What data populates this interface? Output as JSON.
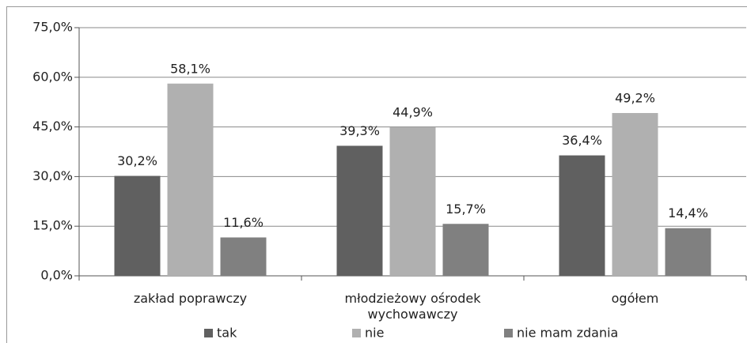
{
  "chart_data": {
    "type": "bar",
    "categories": [
      "zakład poprawczy",
      "młodzieżowy ośrodek wychowawczy",
      "ogółem"
    ],
    "series": [
      {
        "name": "tak",
        "color": "#606060",
        "values": [
          30.2,
          39.3,
          36.4
        ],
        "value_labels": [
          "30,2%",
          "39,3%",
          "36,4%"
        ]
      },
      {
        "name": "nie",
        "color": "#b0b0b0",
        "values": [
          58.1,
          44.9,
          49.2
        ],
        "value_labels": [
          "58,1%",
          "44,9%",
          "49,2%"
        ]
      },
      {
        "name": "nie mam zdania",
        "color": "#808080",
        "values": [
          11.6,
          15.7,
          14.4
        ],
        "value_labels": [
          "11,6%",
          "15,7%",
          "14,4%"
        ]
      }
    ],
    "ylim": [
      0,
      75
    ],
    "yticks": [
      {
        "value": 0,
        "label": "0,0%"
      },
      {
        "value": 15,
        "label": "15,0%"
      },
      {
        "value": 30,
        "label": "30,0%"
      },
      {
        "value": 45,
        "label": "45,0%"
      },
      {
        "value": 60,
        "label": "60,0%"
      },
      {
        "value": 75,
        "label": "75,0%"
      }
    ],
    "grid": true,
    "legend": "bottom"
  }
}
